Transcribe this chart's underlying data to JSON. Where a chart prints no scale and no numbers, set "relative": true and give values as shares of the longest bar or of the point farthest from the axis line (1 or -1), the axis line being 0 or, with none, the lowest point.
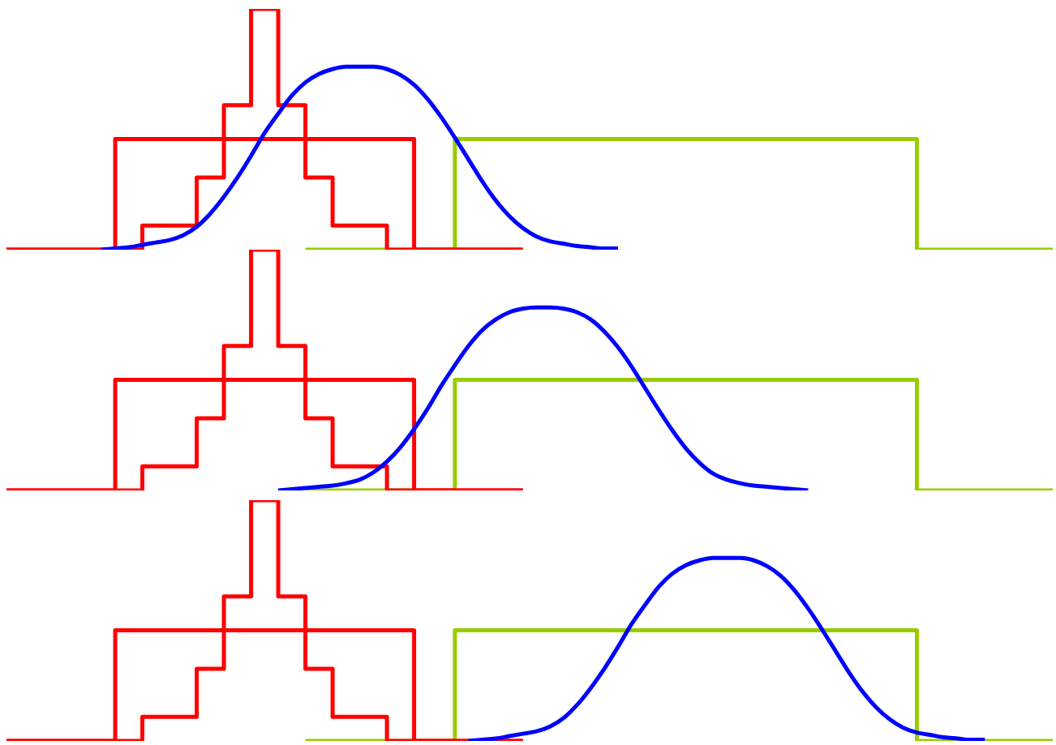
{
  "chart_data": [
    {
      "type": "step",
      "relative": true,
      "categories": [
        null,
        null,
        null,
        null,
        null,
        null,
        null,
        null,
        null,
        null,
        null,
        null,
        null,
        null,
        null,
        null,
        null,
        null,
        null,
        null,
        null,
        null,
        null,
        null,
        null,
        null,
        null,
        null,
        null,
        null,
        null,
        null,
        null,
        null,
        null,
        null,
        null,
        null,
        null,
        null,
        null,
        null,
        null,
        null,
        null,
        null,
        null,
        null,
        null,
        null,
        null,
        null,
        null,
        null,
        null,
        null,
        null,
        null,
        null,
        null,
        null,
        null,
        null,
        null,
        null,
        null,
        null,
        null,
        null,
        null,
        null,
        null,
        null,
        null,
        null,
        null,
        null,
        null
      ],
      "series": [
        {
          "color": "#99cc00",
          "values": [
            null,
            null,
            null,
            null,
            null,
            null,
            null,
            null,
            null,
            null,
            null,
            null,
            null,
            null,
            null,
            null,
            null,
            null,
            null,
            null,
            null,
            null,
            0,
            0,
            0,
            0,
            0,
            0,
            0,
            0,
            0,
            0,
            0,
            0.46,
            0.46,
            0.46,
            0.46,
            0.46,
            0.46,
            0.46,
            0.46,
            0.46,
            0.46,
            0.46,
            0.46,
            0.46,
            0.46,
            0.46,
            0.46,
            0.46,
            0.46,
            0.46,
            0.46,
            0.46,
            0.46,
            0.46,
            0.46,
            0.46,
            0.46,
            0.46,
            0.46,
            0.46,
            0.46,
            0.46,
            0.46,
            0.46,
            0.46,
            0,
            0,
            0,
            0,
            0,
            0,
            0,
            0,
            0,
            0,
            0
          ]
        },
        {
          "color": "#ff0000",
          "values": [
            0,
            0,
            0,
            0,
            0,
            0,
            0,
            0,
            0.46,
            0.46,
            0.46,
            0.46,
            0.46,
            0.46,
            0.46,
            0.46,
            0.46,
            0.46,
            0.46,
            0.46,
            0.46,
            0.46,
            0.46,
            0.46,
            0.46,
            0.46,
            0.46,
            0.46,
            0.46,
            0.46,
            0,
            0,
            0,
            0,
            0,
            0,
            0,
            0,
            0,
            null,
            null,
            null,
            null,
            null,
            null,
            null,
            null,
            null,
            null,
            null,
            null,
            null,
            null,
            null,
            null,
            null,
            null,
            null,
            null,
            null,
            null,
            null,
            null,
            null,
            null,
            null,
            null,
            null,
            null,
            null,
            null,
            null,
            null,
            null,
            null,
            null,
            null,
            null
          ]
        },
        {
          "color": "#ff0000",
          "values": [
            0,
            0,
            0,
            0,
            0,
            0,
            0,
            0,
            0,
            0,
            0.1,
            0.1,
            0.1,
            0.1,
            0.3,
            0.3,
            0.6,
            0.6,
            1,
            1,
            0.6,
            0.6,
            0.3,
            0.3,
            0.1,
            0.1,
            0.1,
            0.1,
            0,
            0,
            0,
            0,
            0,
            0,
            0,
            0,
            0,
            0,
            0,
            null,
            null,
            null,
            null,
            null,
            null,
            null,
            null,
            null,
            null,
            null,
            null,
            null,
            null,
            null,
            null,
            null,
            null,
            null,
            null,
            null,
            null,
            null,
            null,
            null,
            null,
            null,
            null,
            null,
            null,
            null,
            null,
            null,
            null,
            null,
            null,
            null,
            null,
            null
          ]
        },
        {
          "type": "line",
          "color": "#0000ff",
          "values": [
            null,
            null,
            null,
            null,
            null,
            null,
            null,
            0,
            0.005,
            0.01,
            0.02,
            0.03,
            0.04,
            0.06,
            0.095,
            0.15,
            0.22,
            0.3,
            0.39,
            0.485,
            0.565,
            0.64,
            0.695,
            0.73,
            0.75,
            0.76,
            0.76,
            0.76,
            0.75,
            0.725,
            0.685,
            0.625,
            0.55,
            0.465,
            0.375,
            0.285,
            0.205,
            0.14,
            0.09,
            0.055,
            0.035,
            0.025,
            0.015,
            0.01,
            0.005,
            0.005,
            null,
            null,
            null,
            null,
            null,
            null,
            null,
            null,
            null,
            null,
            null,
            null,
            null,
            null,
            null,
            null,
            null,
            null,
            null,
            null,
            null,
            null,
            null,
            null,
            null,
            null,
            null,
            null,
            null,
            null,
            null,
            null
          ]
        }
      ]
    },
    {
      "type": "step",
      "relative": true,
      "categories": [
        null,
        null,
        null,
        null,
        null,
        null,
        null,
        null,
        null,
        null,
        null,
        null,
        null,
        null,
        null,
        null,
        null,
        null,
        null,
        null,
        null,
        null,
        null,
        null,
        null,
        null,
        null,
        null,
        null,
        null,
        null,
        null,
        null,
        null,
        null,
        null,
        null,
        null,
        null,
        null,
        null,
        null,
        null,
        null,
        null,
        null,
        null,
        null,
        null,
        null,
        null,
        null,
        null,
        null,
        null,
        null,
        null,
        null,
        null,
        null,
        null,
        null,
        null,
        null,
        null,
        null,
        null,
        null,
        null,
        null,
        null,
        null,
        null,
        null,
        null,
        null,
        null,
        null
      ],
      "series": [
        {
          "color": "#99cc00",
          "values": [
            null,
            null,
            null,
            null,
            null,
            null,
            null,
            null,
            null,
            null,
            null,
            null,
            null,
            null,
            null,
            null,
            null,
            null,
            null,
            null,
            null,
            null,
            0,
            0,
            0,
            0,
            0,
            0,
            0,
            0,
            0,
            0,
            0,
            0.46,
            0.46,
            0.46,
            0.46,
            0.46,
            0.46,
            0.46,
            0.46,
            0.46,
            0.46,
            0.46,
            0.46,
            0.46,
            0.46,
            0.46,
            0.46,
            0.46,
            0.46,
            0.46,
            0.46,
            0.46,
            0.46,
            0.46,
            0.46,
            0.46,
            0.46,
            0.46,
            0.46,
            0.46,
            0.46,
            0.46,
            0.46,
            0.46,
            0.46,
            0,
            0,
            0,
            0,
            0,
            0,
            0,
            0,
            0,
            0,
            0
          ]
        },
        {
          "color": "#ff0000",
          "values": [
            0,
            0,
            0,
            0,
            0,
            0,
            0,
            0,
            0.46,
            0.46,
            0.46,
            0.46,
            0.46,
            0.46,
            0.46,
            0.46,
            0.46,
            0.46,
            0.46,
            0.46,
            0.46,
            0.46,
            0.46,
            0.46,
            0.46,
            0.46,
            0.46,
            0.46,
            0.46,
            0.46,
            0,
            0,
            0,
            0,
            0,
            0,
            0,
            0,
            0,
            null,
            null,
            null,
            null,
            null,
            null,
            null,
            null,
            null,
            null,
            null,
            null,
            null,
            null,
            null,
            null,
            null,
            null,
            null,
            null,
            null,
            null,
            null,
            null,
            null,
            null,
            null,
            null,
            null,
            null,
            null,
            null,
            null,
            null,
            null,
            null,
            null,
            null,
            null
          ]
        },
        {
          "color": "#ff0000",
          "values": [
            0,
            0,
            0,
            0,
            0,
            0,
            0,
            0,
            0,
            0,
            0.1,
            0.1,
            0.1,
            0.1,
            0.3,
            0.3,
            0.6,
            0.6,
            1,
            1,
            0.6,
            0.6,
            0.3,
            0.3,
            0.1,
            0.1,
            0.1,
            0.1,
            0,
            0,
            0,
            0,
            0,
            0,
            0,
            0,
            0,
            0,
            0,
            null,
            null,
            null,
            null,
            null,
            null,
            null,
            null,
            null,
            null,
            null,
            null,
            null,
            null,
            null,
            null,
            null,
            null,
            null,
            null,
            null,
            null,
            null,
            null,
            null,
            null,
            null,
            null,
            null,
            null,
            null,
            null,
            null,
            null,
            null,
            null,
            null,
            null,
            null
          ]
        },
        {
          "type": "line",
          "color": "#0000ff",
          "values": [
            null,
            null,
            null,
            null,
            null,
            null,
            null,
            null,
            null,
            null,
            null,
            null,
            null,
            null,
            null,
            null,
            null,
            null,
            null,
            null,
            0,
            0.005,
            0.01,
            0.015,
            0.02,
            0.03,
            0.045,
            0.075,
            0.12,
            0.18,
            0.255,
            0.34,
            0.435,
            0.52,
            0.6,
            0.665,
            0.71,
            0.74,
            0.755,
            0.76,
            0.76,
            0.755,
            0.74,
            0.71,
            0.66,
            0.595,
            0.515,
            0.425,
            0.335,
            0.25,
            0.175,
            0.115,
            0.07,
            0.045,
            0.03,
            0.02,
            0.015,
            0.01,
            0.005,
            0,
            null,
            null,
            null,
            null,
            null,
            null,
            null,
            null,
            null,
            null,
            null,
            null,
            null,
            null,
            null,
            null,
            null,
            null
          ]
        }
      ]
    },
    {
      "type": "step",
      "relative": true,
      "categories": [
        null,
        null,
        null,
        null,
        null,
        null,
        null,
        null,
        null,
        null,
        null,
        null,
        null,
        null,
        null,
        null,
        null,
        null,
        null,
        null,
        null,
        null,
        null,
        null,
        null,
        null,
        null,
        null,
        null,
        null,
        null,
        null,
        null,
        null,
        null,
        null,
        null,
        null,
        null,
        null,
        null,
        null,
        null,
        null,
        null,
        null,
        null,
        null,
        null,
        null,
        null,
        null,
        null,
        null,
        null,
        null,
        null,
        null,
        null,
        null,
        null,
        null,
        null,
        null,
        null,
        null,
        null,
        null,
        null,
        null,
        null,
        null,
        null,
        null,
        null,
        null,
        null,
        null
      ],
      "series": [
        {
          "color": "#99cc00",
          "values": [
            null,
            null,
            null,
            null,
            null,
            null,
            null,
            null,
            null,
            null,
            null,
            null,
            null,
            null,
            null,
            null,
            null,
            null,
            null,
            null,
            null,
            null,
            0,
            0,
            0,
            0,
            0,
            0,
            0,
            0,
            0,
            0,
            0,
            0.46,
            0.46,
            0.46,
            0.46,
            0.46,
            0.46,
            0.46,
            0.46,
            0.46,
            0.46,
            0.46,
            0.46,
            0.46,
            0.46,
            0.46,
            0.46,
            0.46,
            0.46,
            0.46,
            0.46,
            0.46,
            0.46,
            0.46,
            0.46,
            0.46,
            0.46,
            0.46,
            0.46,
            0.46,
            0.46,
            0.46,
            0.46,
            0.46,
            0.46,
            0,
            0,
            0,
            0,
            0,
            0,
            0,
            0,
            0,
            0,
            0
          ]
        },
        {
          "color": "#ff0000",
          "values": [
            0,
            0,
            0,
            0,
            0,
            0,
            0,
            0,
            0.46,
            0.46,
            0.46,
            0.46,
            0.46,
            0.46,
            0.46,
            0.46,
            0.46,
            0.46,
            0.46,
            0.46,
            0.46,
            0.46,
            0.46,
            0.46,
            0.46,
            0.46,
            0.46,
            0.46,
            0.46,
            0.46,
            0,
            0,
            0,
            0,
            0,
            0,
            0,
            0,
            0,
            null,
            null,
            null,
            null,
            null,
            null,
            null,
            null,
            null,
            null,
            null,
            null,
            null,
            null,
            null,
            null,
            null,
            null,
            null,
            null,
            null,
            null,
            null,
            null,
            null,
            null,
            null,
            null,
            null,
            null,
            null,
            null,
            null,
            null,
            null,
            null,
            null,
            null,
            null
          ]
        },
        {
          "color": "#ff0000",
          "values": [
            0,
            0,
            0,
            0,
            0,
            0,
            0,
            0,
            0,
            0,
            0.1,
            0.1,
            0.1,
            0.1,
            0.3,
            0.3,
            0.6,
            0.6,
            1,
            1,
            0.6,
            0.6,
            0.3,
            0.3,
            0.1,
            0.1,
            0.1,
            0.1,
            0,
            0,
            0,
            0,
            0,
            0,
            0,
            0,
            0,
            0,
            0,
            null,
            null,
            null,
            null,
            null,
            null,
            null,
            null,
            null,
            null,
            null,
            null,
            null,
            null,
            null,
            null,
            null,
            null,
            null,
            null,
            null,
            null,
            null,
            null,
            null,
            null,
            null,
            null,
            null,
            null,
            null,
            null,
            null,
            null,
            null,
            null,
            null,
            null,
            null
          ]
        },
        {
          "type": "line",
          "color": "#0000ff",
          "values": [
            null,
            null,
            null,
            null,
            null,
            null,
            null,
            null,
            null,
            null,
            null,
            null,
            null,
            null,
            null,
            null,
            null,
            null,
            null,
            null,
            null,
            null,
            null,
            null,
            null,
            null,
            null,
            null,
            null,
            null,
            null,
            null,
            null,
            null,
            0,
            0.005,
            0.01,
            0.02,
            0.03,
            0.04,
            0.06,
            0.095,
            0.15,
            0.22,
            0.3,
            0.39,
            0.485,
            0.565,
            0.64,
            0.695,
            0.73,
            0.75,
            0.76,
            0.76,
            0.76,
            0.75,
            0.725,
            0.685,
            0.625,
            0.55,
            0.465,
            0.375,
            0.285,
            0.205,
            0.14,
            0.09,
            0.055,
            0.035,
            0.025,
            0.015,
            0.01,
            0.005,
            0.005,
            null,
            null,
            null,
            null,
            null
          ]
        }
      ]
    }
  ]
}
